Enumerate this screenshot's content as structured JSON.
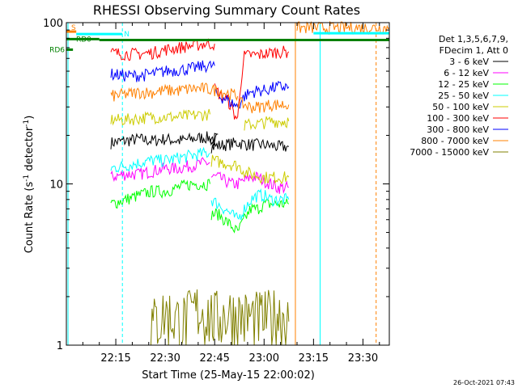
{
  "chart_data": {
    "type": "line",
    "title": "RHESSI Observing Summary Count Rates",
    "xlabel": "Start Time (25-May-15 22:00:02)",
    "ylabel_main": "Count Rate (s",
    "ylabel_sup1": "-1",
    "ylabel_mid": " detector",
    "ylabel_sup2": "-1",
    "ylabel_end": ")",
    "yscale": "log",
    "ylim": [
      1,
      100
    ],
    "xlim_minutes": [
      0,
      98
    ],
    "x_ticks": [
      {
        "label": "22:15",
        "minutes": 15
      },
      {
        "label": "22:30",
        "minutes": 30
      },
      {
        "label": "22:45",
        "minutes": 45
      },
      {
        "label": "23:00",
        "minutes": 60
      },
      {
        "label": "23:15",
        "minutes": 75
      },
      {
        "label": "23:30",
        "minutes": 90
      }
    ],
    "y_ticks": [
      {
        "label": "1",
        "value": 1
      },
      {
        "label": "10",
        "value": 10
      },
      {
        "label": "100",
        "value": 100
      }
    ],
    "legend": {
      "placement": "right",
      "header": [
        "Det 1,3,5,6,7,9,",
        "FDecim 1, Att 0"
      ]
    },
    "series": [
      {
        "name": "3 - 6 keV",
        "color": "#000000",
        "segments": [
          {
            "x": [
              13.5,
              18,
              22,
              26,
              30,
              34,
              38,
              42,
              46,
              43.6
            ],
            "y": [
              18,
              18.5,
              19,
              18.5,
              19,
              18.5,
              19,
              19.5,
              19,
              19
            ]
          },
          {
            "x": [
              44,
              48,
              52,
              56,
              60,
              64,
              67.5
            ],
            "y": [
              17,
              17.5,
              18,
              17.5,
              17.5,
              17,
              17
            ]
          }
        ]
      },
      {
        "name": "6 - 12 keV",
        "color": "#ff00ff",
        "segments": [
          {
            "x": [
              13.5,
              18,
              22,
              26,
              30,
              34,
              38,
              42,
              43.6
            ],
            "y": [
              11,
              11.5,
              11.5,
              12,
              12.5,
              12.5,
              13,
              13.5,
              13.5
            ]
          },
          {
            "x": [
              44,
              46,
              48,
              50,
              52,
              54,
              56,
              58,
              60,
              62,
              64,
              67.5
            ],
            "y": [
              11,
              11,
              10.5,
              10,
              10,
              10.5,
              11,
              11,
              10.5,
              10,
              9.5,
              9.5
            ]
          }
        ]
      },
      {
        "name": "12 - 25 keV",
        "color": "#00ff00",
        "segments": [
          {
            "x": [
              13.5,
              18,
              22,
              26,
              30,
              34,
              38,
              42,
              43.6
            ],
            "y": [
              7.5,
              8,
              8.5,
              9,
              9,
              9.5,
              10,
              10,
              10
            ]
          },
          {
            "x": [
              44,
              46,
              48,
              50,
              52,
              54,
              56,
              58,
              60,
              62,
              64,
              67.5
            ],
            "y": [
              6.5,
              6.5,
              6,
              5.5,
              5,
              6,
              7,
              7,
              7.5,
              7.5,
              7.5,
              7.5
            ]
          }
        ]
      },
      {
        "name": "25 - 50 keV",
        "color": "#00ffff",
        "segments": [
          {
            "x": [
              13.5,
              18,
              22,
              26,
              30,
              34,
              38,
              42,
              43.6
            ],
            "y": [
              12.5,
              13,
              13.5,
              14,
              14,
              14.5,
              15,
              15.5,
              15.5
            ]
          },
          {
            "x": [
              44,
              46,
              48,
              50,
              52,
              54,
              56,
              58,
              60,
              62,
              64,
              67.5
            ],
            "y": [
              8,
              7.5,
              7,
              6.5,
              6,
              7,
              8,
              8.5,
              8.5,
              8,
              8,
              8
            ]
          }
        ]
      },
      {
        "name": "50 - 100 keV",
        "color": "#cccc00",
        "segments": [
          {
            "x": [
              13.5,
              18,
              22,
              26,
              30,
              34,
              38,
              42,
              43.6
            ],
            "y": [
              25,
              25,
              25.5,
              26,
              26,
              26,
              26.5,
              27,
              27
            ]
          },
          {
            "x": [
              44,
              48,
              52,
              54,
              56,
              60,
              64,
              67.5
            ],
            "y": [
              14,
              13.5,
              13,
              12,
              11.5,
              11,
              11,
              11
            ]
          },
          {
            "x": [
              54,
              56,
              58,
              60,
              62,
              64,
              67.5
            ],
            "y": [
              23,
              23.5,
              23.5,
              24,
              24.5,
              24.5,
              24.5
            ]
          }
        ]
      },
      {
        "name": "100 - 300 keV",
        "color": "#ff0000",
        "segments": [
          {
            "x": [
              13.5,
              18,
              22,
              26,
              30,
              34,
              38,
              42,
              45
            ],
            "y": [
              65,
              64,
              64,
              65,
              68,
              70,
              72,
              74,
              74
            ]
          },
          {
            "x": [
              45,
              47,
              49,
              50,
              51,
              52,
              54,
              56,
              58,
              60,
              62,
              64,
              67.5
            ],
            "y": [
              39,
              35,
              33,
              30,
              27,
              25,
              62,
              63,
              63,
              64,
              65,
              66,
              66
            ]
          }
        ]
      },
      {
        "name": "300 - 800 keV",
        "color": "#0000ff",
        "segments": [
          {
            "x": [
              13.5,
              18,
              22,
              26,
              30,
              34,
              38,
              42,
              45
            ],
            "y": [
              48,
              47,
              47,
              48,
              50,
              51,
              52,
              54,
              54
            ]
          },
          {
            "x": [
              45,
              48,
              50,
              52,
              54,
              56,
              58,
              60,
              62,
              64,
              67.5
            ],
            "y": [
              36,
              34,
              32,
              30,
              35,
              37,
              38,
              38,
              39,
              40,
              40
            ]
          }
        ]
      },
      {
        "name": "800 - 7000 keV",
        "color": "#ff8000",
        "segments": [
          {
            "x": [
              13.5,
              18,
              22,
              26,
              30,
              34,
              38,
              42,
              46,
              50,
              52
            ],
            "y": [
              35,
              36,
              37,
              37,
              38,
              38,
              39,
              39,
              38,
              36,
              35
            ]
          },
          {
            "x": [
              52,
              54,
              56,
              58,
              60,
              62,
              64,
              67.5
            ],
            "y": [
              32,
              31,
              30,
              30,
              30.5,
              31,
              31,
              31
            ]
          },
          {
            "x": [
              70,
              98
            ],
            "y": [
              93,
              93
            ]
          }
        ]
      },
      {
        "name": "7000 - 15000 keV",
        "color": "#808000",
        "segments": [
          {
            "x": [
              25,
              30,
              35,
              40,
              45,
              50,
              55,
              60,
              65,
              67.5
            ],
            "y": [
              1.3,
              1.6,
              1.4,
              1.7,
              1.5,
              1.6,
              1.5,
              1.5,
              1.6,
              1.4
            ]
          }
        ]
      }
    ],
    "flag_lines": [
      {
        "label": "S",
        "color": "#ff8000",
        "y": 88,
        "x": [
          0,
          3
        ]
      },
      {
        "label": "N",
        "color": "#00ffff",
        "y": 85,
        "x": [
          3,
          17
        ]
      },
      {
        "label": "RD0",
        "color": "#008000",
        "y": 79,
        "x": [
          0,
          10
        ]
      },
      {
        "label": "RD6",
        "color": "#008000",
        "y": 68,
        "x": [
          0,
          2
        ]
      },
      {
        "label": "",
        "color": "#008000",
        "y": 78,
        "x": [
          10,
          98
        ]
      },
      {
        "label": "",
        "color": "#00ffff",
        "y": 86,
        "x": [
          75,
          98
        ]
      }
    ],
    "vertical_lines": [
      {
        "x": 0.5,
        "color": "#00ffff",
        "style": "solid"
      },
      {
        "x": 17,
        "color": "#00ffff",
        "style": "dashed"
      },
      {
        "x": 69.5,
        "color": "#ff8000",
        "style": "solid"
      },
      {
        "x": 77,
        "color": "#00ffff",
        "style": "solid"
      },
      {
        "x": 94,
        "color": "#ff8000",
        "style": "dashed"
      }
    ]
  },
  "footer": {
    "timestamp": "26-Oct-2021 07:43"
  }
}
